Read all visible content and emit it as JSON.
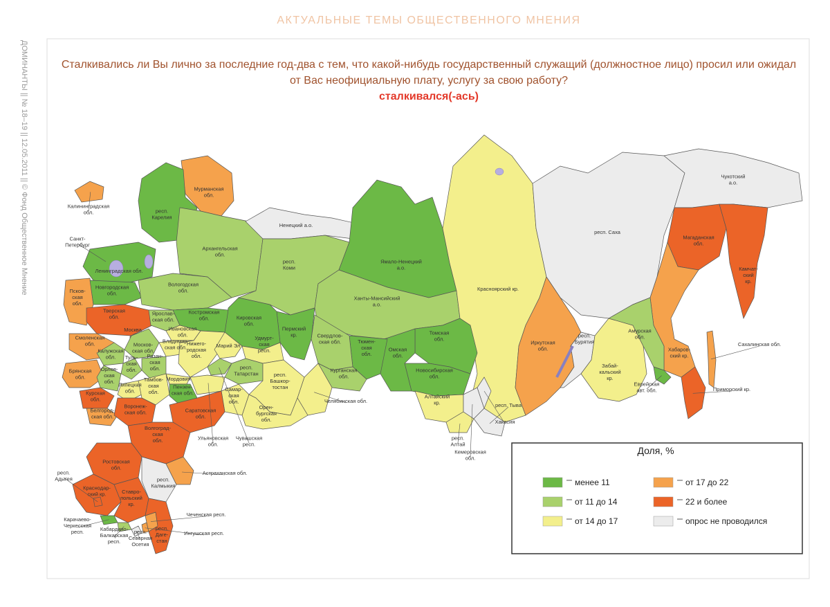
{
  "header": "АКТУАЛЬНЫЕ ТЕМЫ ОБЩЕСТВЕННОГО МНЕНИЯ",
  "side_text": "ДОМИНАНТЫ || № 18–19 || 12.05.2011 || © Фонд Общественное Мнение",
  "question": [
    "Сталкивались ли Вы лично за последние год-два с тем, что какой-нибудь государственный служащий (должностное лицо) просил или ожидал",
    "от Вас неофициальную плату, услугу за свою работу?"
  ],
  "answer": "сталкивался(-ась)",
  "legend": {
    "title": "Доля, %",
    "items": [
      {
        "label": "менее 11",
        "color": "#6cb946"
      },
      {
        "label": "от 11 до 14",
        "color": "#a9d16c"
      },
      {
        "label": "от 14 до 17",
        "color": "#f3ef8c"
      },
      {
        "label": "от 17 до 22",
        "color": "#f5a24c"
      },
      {
        "label": "22 и более",
        "color": "#eb6428"
      },
      {
        "label": "опрос не проводился",
        "color": "#ececec"
      }
    ]
  },
  "regions": [
    {
      "label": [
        "Калининградская",
        "обл."
      ],
      "bin": 3
    },
    {
      "label": [
        "Мурманская",
        "обл."
      ],
      "bin": 3
    },
    {
      "label": [
        "респ.",
        "Карелия"
      ],
      "bin": 0
    },
    {
      "label": [
        "Санкт-",
        "Петербург"
      ],
      "bin": 4
    },
    {
      "label": [
        "Ленинградская обл."
      ],
      "bin": 0
    },
    {
      "label": [
        "Псков-",
        "ская",
        "обл."
      ],
      "bin": 3
    },
    {
      "label": [
        "Новгородская",
        "обл."
      ],
      "bin": 0
    },
    {
      "label": [
        "Вологодская",
        "обл."
      ],
      "bin": 1
    },
    {
      "label": [
        "Архангельская",
        "обл."
      ],
      "bin": 1
    },
    {
      "label": [
        "Ненецкий а.о."
      ],
      "bin": 5
    },
    {
      "label": [
        "респ.",
        "Коми"
      ],
      "bin": 1
    },
    {
      "label": [
        "Ямало-Ненецкий",
        "а.о."
      ],
      "bin": 0
    },
    {
      "label": [
        "Ханты-Мансийский",
        "а.о."
      ],
      "bin": 1
    },
    {
      "label": [
        "Красноярский кр."
      ],
      "bin": 2
    },
    {
      "label": [
        "респ. Саха"
      ],
      "bin": 5
    },
    {
      "label": [
        "Чукотский",
        "а.о."
      ],
      "bin": 5
    },
    {
      "label": [
        "Магаданская",
        "обл."
      ],
      "bin": 4
    },
    {
      "label": [
        "Камчат-",
        "ский",
        "кр."
      ],
      "bin": 4
    },
    {
      "label": [
        "Хабаров-",
        "ский кр."
      ],
      "bin": 3
    },
    {
      "label": [
        "Иркутская",
        "обл."
      ],
      "bin": 3
    },
    {
      "label": [
        "респ.",
        "Бурятия"
      ],
      "bin": 5
    },
    {
      "label": [
        "Забай-",
        "кальский",
        "кр."
      ],
      "bin": 2
    },
    {
      "label": [
        "Амурская",
        "обл."
      ],
      "bin": 1
    },
    {
      "label": [
        "Еврейская",
        "авт. обл."
      ],
      "bin": 0
    },
    {
      "label": [
        "Приморский кр."
      ],
      "bin": 4
    },
    {
      "label": [
        "Сахалинская обл."
      ],
      "bin": 3
    },
    {
      "label": [
        "Томская",
        "обл."
      ],
      "bin": 0
    },
    {
      "label": [
        "Новосибирская",
        "обл."
      ],
      "bin": 0
    },
    {
      "label": [
        "Омская",
        "обл."
      ],
      "bin": 0
    },
    {
      "label": [
        "Тюмен-",
        "ская",
        "обл."
      ],
      "bin": 0
    },
    {
      "label": [
        "Свердлов-",
        "ская обл."
      ],
      "bin": 1
    },
    {
      "label": [
        "Курганская",
        "обл."
      ],
      "bin": 1
    },
    {
      "label": [
        "Челябинская обл."
      ],
      "bin": 2
    },
    {
      "label": [
        "Пермский",
        "кр."
      ],
      "bin": 0
    },
    {
      "label": [
        "Кировская",
        "обл."
      ],
      "bin": 0
    },
    {
      "label": [
        "Алтайский",
        "кр."
      ],
      "bin": 2
    },
    {
      "label": [
        "респ.",
        "Алтай"
      ],
      "bin": 2
    },
    {
      "label": [
        "Кемеровская",
        "обл."
      ],
      "bin": 5
    },
    {
      "label": [
        "респ. Тыва"
      ],
      "bin": 5
    },
    {
      "label": [
        "Хакасия"
      ],
      "bin": 5
    },
    {
      "label": [
        "Тверская",
        "обл."
      ],
      "bin": 4
    },
    {
      "label": [
        "Москва"
      ],
      "bin": 4
    },
    {
      "label": [
        "Москов-",
        "ская обл."
      ],
      "bin": 1
    },
    {
      "label": [
        "Смоленская",
        "обл."
      ],
      "bin": 3
    },
    {
      "label": [
        "Ярослав-",
        "ская обл."
      ],
      "bin": 1
    },
    {
      "label": [
        "Костромская",
        "обл."
      ],
      "bin": 0
    },
    {
      "label": [
        "Ивановская",
        "обл."
      ],
      "bin": 2
    },
    {
      "label": [
        "Владимир-",
        "ская обл."
      ],
      "bin": 2
    },
    {
      "label": [
        "Калужская",
        "обл."
      ],
      "bin": 1
    },
    {
      "label": [
        "Туль-",
        "ская",
        "обл."
      ],
      "bin": 1
    },
    {
      "label": [
        "Рязан-",
        "ская",
        "обл."
      ],
      "bin": 1
    },
    {
      "label": [
        "Брянская",
        "обл."
      ],
      "bin": 3
    },
    {
      "label": [
        "Орлов-",
        "ская",
        "обл."
      ],
      "bin": 1
    },
    {
      "label": [
        "Липецкая",
        "обл."
      ],
      "bin": 2
    },
    {
      "label": [
        "Тамбов-",
        "ская",
        "обл."
      ],
      "bin": 2
    },
    {
      "label": [
        "Курская",
        "обл."
      ],
      "bin": 4
    },
    {
      "label": [
        "Белгород-",
        "ская обл."
      ],
      "bin": 3
    },
    {
      "label": [
        "Воронеж-",
        "ская обл."
      ],
      "bin": 4
    },
    {
      "label": [
        "Нижего-",
        "родская",
        "обл."
      ],
      "bin": 2
    },
    {
      "label": [
        "Марий Эл"
      ],
      "bin": 2
    },
    {
      "label": [
        "Удмурт-",
        "ская",
        "респ."
      ],
      "bin": 2
    },
    {
      "label": [
        "Чувашская",
        "респ."
      ],
      "bin": 1
    },
    {
      "label": [
        "Мордовия"
      ],
      "bin": 2
    },
    {
      "label": [
        "респ.",
        "Татарстан"
      ],
      "bin": 1
    },
    {
      "label": [
        "Пензен-",
        "ская обл."
      ],
      "bin": 0
    },
    {
      "label": [
        "Ульяновская",
        "обл."
      ],
      "bin": 2
    },
    {
      "label": [
        "Самар-",
        "ская",
        "обл."
      ],
      "bin": 2
    },
    {
      "label": [
        "респ.",
        "Башкор-",
        "тостан"
      ],
      "bin": 2
    },
    {
      "label": [
        "Орен-",
        "бургская",
        "обл."
      ],
      "bin": 2
    },
    {
      "label": [
        "Саратовская",
        "обл."
      ],
      "bin": 4
    },
    {
      "label": [
        "Волгоград-",
        "ская",
        "обл."
      ],
      "bin": 4
    },
    {
      "label": [
        "Ростовская",
        "обл."
      ],
      "bin": 4
    },
    {
      "label": [
        "респ.",
        "Калмыкия"
      ],
      "bin": 5
    },
    {
      "label": [
        "Астраханская обл."
      ],
      "bin": 3
    },
    {
      "label": [
        "Краснодар-",
        "ский кр."
      ],
      "bin": 4
    },
    {
      "label": [
        "респ.",
        "Адыгея"
      ],
      "bin": 4
    },
    {
      "label": [
        "Ставро-",
        "польский",
        "кр."
      ],
      "bin": 4
    },
    {
      "label": [
        "Карачаево-",
        "Черкесская",
        "респ."
      ],
      "bin": 0
    },
    {
      "label": [
        "Кабардино-",
        "Балкарская",
        "респ."
      ],
      "bin": 1
    },
    {
      "label": [
        "респ.",
        "Северная",
        "Осетия"
      ],
      "bin": 5
    },
    {
      "label": [
        "Ингушская респ."
      ],
      "bin": 3
    },
    {
      "label": [
        "Чеченская респ."
      ],
      "bin": 3
    },
    {
      "label": [
        "респ.",
        "Даге-",
        "стан"
      ],
      "bin": 4
    }
  ]
}
